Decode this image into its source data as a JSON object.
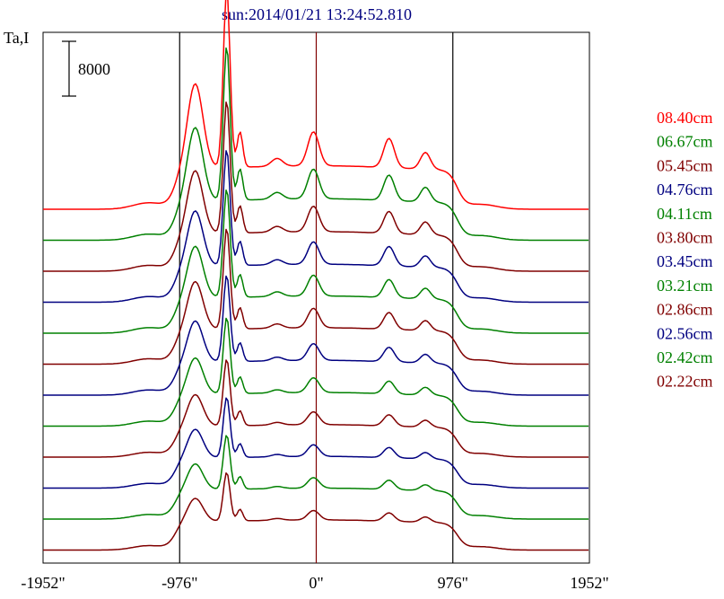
{
  "chart_data": {
    "type": "line",
    "title": "sun:2014/01/21 13:24:52.810",
    "ylabel": "Ta,I",
    "scale_bar_label": "8000",
    "x_ticks": [
      {
        "value": -1952,
        "label": "-1952\""
      },
      {
        "value": -976,
        "label": "-976\""
      },
      {
        "value": 0,
        "label": "0\""
      },
      {
        "value": 976,
        "label": "976\""
      },
      {
        "value": 1952,
        "label": "1952\""
      }
    ],
    "xlim": [
      -1952,
      1952
    ],
    "vertical_lines": [
      -976,
      0,
      976
    ],
    "colors": {
      "red": "#ff0000",
      "green": "#008000",
      "maroon": "#800000",
      "navy": "#000080"
    },
    "series": [
      {
        "name": "08.40cm",
        "color": "#ff0000",
        "amp": 1.0
      },
      {
        "name": "06.67cm",
        "color": "#008000",
        "amp": 0.9
      },
      {
        "name": "05.45cm",
        "color": "#800000",
        "amp": 0.8
      },
      {
        "name": "04.76cm",
        "color": "#000080",
        "amp": 0.72
      },
      {
        "name": "04.11cm",
        "color": "#008000",
        "amp": 0.68
      },
      {
        "name": "03.80cm",
        "color": "#800000",
        "amp": 0.64
      },
      {
        "name": "03.45cm",
        "color": "#000080",
        "amp": 0.56
      },
      {
        "name": "03.21cm",
        "color": "#008000",
        "amp": 0.5
      },
      {
        "name": "02.86cm",
        "color": "#800000",
        "amp": 0.44
      },
      {
        "name": "02.56cm",
        "color": "#000080",
        "amp": 0.4
      },
      {
        "name": "02.42cm",
        "color": "#008000",
        "amp": 0.36
      },
      {
        "name": "02.22cm",
        "color": "#800000",
        "amp": 0.32
      }
    ]
  }
}
